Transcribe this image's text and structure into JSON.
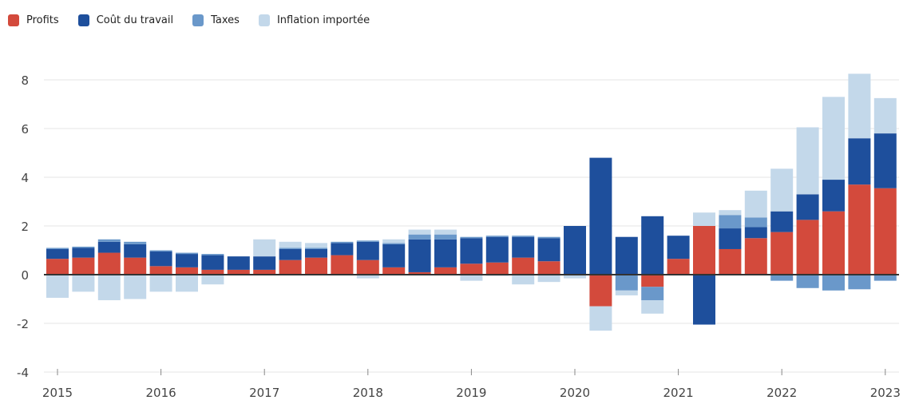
{
  "legend": [
    {
      "label": "Profits",
      "color": "#d34a3c"
    },
    {
      "label": "Coût du travail",
      "color": "#1e4f9c"
    },
    {
      "label": "Taxes",
      "color": "#6a98ca"
    },
    {
      "label": "Inflation importée",
      "color": "#c3d8ea"
    }
  ],
  "chart_data": {
    "type": "bar",
    "stacked": true,
    "title": "",
    "xlabel": "",
    "ylabel": "",
    "ylim": [
      -4,
      8.5
    ],
    "yticks": [
      8,
      6,
      4,
      2,
      0,
      -2,
      -4
    ],
    "xtick_labels": [
      "2015",
      "2016",
      "2017",
      "2018",
      "2019",
      "2020",
      "2021",
      "2022",
      "2023"
    ],
    "grid": true,
    "legend_position": "top-left",
    "categories": [
      "2015 T1",
      "2015 T2",
      "2015 T3",
      "2015 T4",
      "2016 T1",
      "2016 T2",
      "2016 T3",
      "2016 T4",
      "2017 T1",
      "2017 T2",
      "2017 T3",
      "2017 T4",
      "2018 T1",
      "2018 T2",
      "2018 T3",
      "2018 T4",
      "2019 T1",
      "2019 T2",
      "2019 T3",
      "2019 T4",
      "2020 T1",
      "2020 T2",
      "2020 T3",
      "2020 T4",
      "2021 T1",
      "2021 T2",
      "2021 T3",
      "2021 T4",
      "2022 T1",
      "2022 T2",
      "2022 T3",
      "2022 T4",
      "2023 T1"
    ],
    "series": [
      {
        "name": "Profits",
        "color": "#d34a3c",
        "values": [
          0.65,
          0.7,
          0.9,
          0.7,
          0.35,
          0.3,
          0.2,
          0.2,
          0.2,
          0.6,
          0.7,
          0.8,
          0.6,
          0.3,
          0.1,
          0.3,
          0.45,
          0.5,
          0.7,
          0.55,
          0.0,
          -1.3,
          0.0,
          -0.5,
          0.65,
          2.0,
          1.05,
          1.5,
          1.75,
          2.25,
          2.6,
          3.7,
          3.55
        ]
      },
      {
        "name": "Coût du travail",
        "color": "#1e4f9c",
        "values": [
          0.4,
          0.4,
          0.45,
          0.55,
          0.6,
          0.55,
          0.6,
          0.55,
          0.55,
          0.45,
          0.35,
          0.5,
          0.75,
          0.95,
          1.35,
          1.15,
          1.05,
          1.05,
          0.85,
          0.95,
          2.0,
          4.8,
          1.55,
          2.4,
          0.95,
          -2.05,
          0.85,
          0.45,
          0.85,
          1.05,
          1.3,
          1.9,
          2.25
        ]
      },
      {
        "name": "Taxes",
        "color": "#6a98ca",
        "values": [
          0.05,
          0.05,
          0.1,
          0.1,
          0.05,
          0.05,
          0.05,
          0.0,
          0.0,
          0.05,
          0.05,
          0.05,
          0.05,
          0.05,
          0.2,
          0.2,
          0.05,
          0.05,
          0.05,
          0.05,
          0.0,
          0.0,
          -0.65,
          -0.55,
          0.0,
          0.0,
          0.55,
          0.4,
          -0.25,
          -0.55,
          -0.65,
          -0.6,
          -0.25
        ]
      },
      {
        "name": "Inflation importée",
        "color": "#c3d8ea",
        "values": [
          -0.95,
          -0.7,
          -1.05,
          -1.0,
          -0.7,
          -0.7,
          -0.4,
          0.0,
          0.7,
          0.25,
          0.2,
          0.0,
          -0.15,
          0.15,
          0.2,
          0.2,
          -0.25,
          -0.05,
          -0.4,
          -0.3,
          -0.15,
          -1.0,
          -0.2,
          -0.55,
          0.0,
          0.55,
          0.2,
          1.1,
          1.75,
          2.75,
          3.4,
          2.65,
          1.45
        ]
      }
    ]
  }
}
